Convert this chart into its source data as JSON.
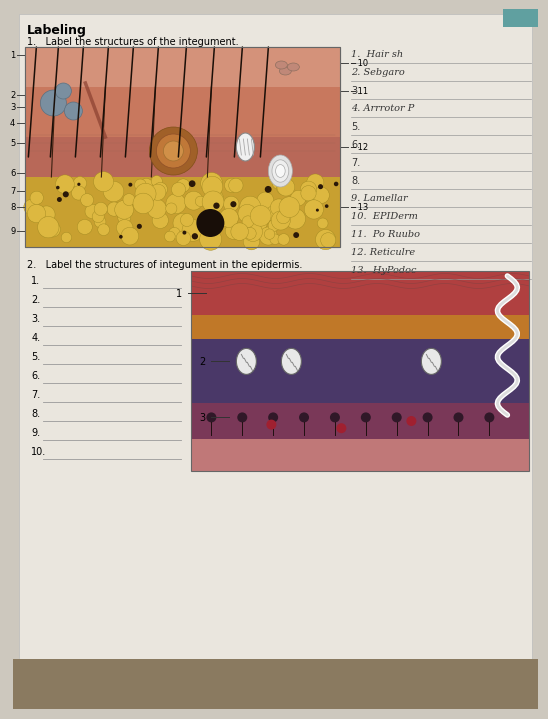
{
  "bg_color": "#cdc8be",
  "paper_color": "#eae6de",
  "title": "Labeling",
  "q1": "1.   Label the structures of the integument.",
  "q2": "2.   Label the structures of integument in the epidermis.",
  "answer_labels": [
    "1.  Hair sh",
    "2. Sebgaro",
    "3.",
    "4. Arrrotor P",
    "5.",
    "6.",
    "7.",
    "8.",
    "9. Lamellar",
    "10.  EPIDerm",
    "11.  Po Ruubo",
    "12. Reticulre",
    "13.  HyPodoc"
  ],
  "left_nums_1": [
    "1",
    "2",
    "3",
    "4",
    "5",
    "6",
    "7",
    "8",
    "9"
  ],
  "right_nums_1": [
    "10",
    "11",
    "12",
    "13"
  ],
  "left_nums_2": [
    "1",
    "2",
    "3",
    "4",
    "5",
    "6",
    "7",
    "8",
    "9",
    "10"
  ]
}
